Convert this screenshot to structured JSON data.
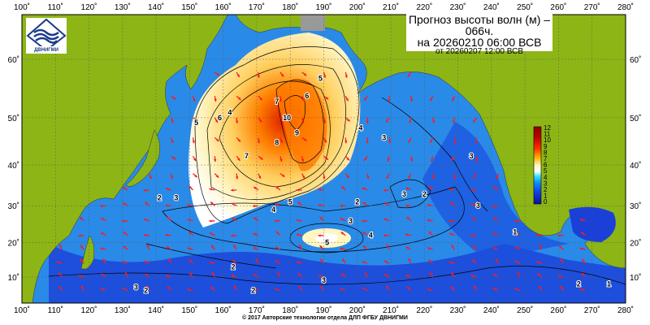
{
  "title": {
    "line1": "Прогноз высоты волн (м) –",
    "line2": "066ч.",
    "line3": "на 20260210 06:00 ВСВ",
    "line4": "от 20260207 12:00 ВСВ"
  },
  "logo": {
    "text": "ДВНИГМИ"
  },
  "footer": "© 2017 Авторские технологии отдела ДЛП ФГБУ ДВНИГМИ",
  "axes": {
    "lon_ticks": [
      "100˚",
      "110˚",
      "120˚",
      "130˚",
      "140˚",
      "150˚",
      "160˚",
      "170˚",
      "180˚",
      "190˚",
      "200˚",
      "210˚",
      "220˚",
      "230˚",
      "240˚",
      "250˚",
      "260˚",
      "270˚",
      "280˚"
    ],
    "lat_ticks": [
      "60˚",
      "50˚",
      "40˚",
      "30˚",
      "20˚",
      "10˚"
    ]
  },
  "colorbar": {
    "labels": [
      "12",
      "11",
      "10",
      "9",
      "8",
      "7",
      "6",
      "5",
      "4",
      "3",
      "2",
      "1",
      "0"
    ],
    "colors": [
      "#8b0000",
      "#c00000",
      "#e00000",
      "#ff3000",
      "#ff7a00",
      "#ffb000",
      "#ffe070",
      "#fff6c0",
      "#ffffff",
      "#40e0ff",
      "#1090ff",
      "#1040e0",
      "#1010a0"
    ]
  },
  "contour_labels": [
    {
      "text": "10",
      "lon": 179,
      "lat": 50
    },
    {
      "text": "9",
      "lon": 182,
      "lat": 47
    },
    {
      "text": "8",
      "lon": 176,
      "lat": 45
    },
    {
      "text": "7",
      "lon": 167,
      "lat": 42
    },
    {
      "text": "7",
      "lon": 176,
      "lat": 53
    },
    {
      "text": "6",
      "lon": 159,
      "lat": 50
    },
    {
      "text": "6",
      "lon": 185,
      "lat": 54
    },
    {
      "text": "5",
      "lon": 152,
      "lat": 49
    },
    {
      "text": "5",
      "lon": 189,
      "lat": 57
    },
    {
      "text": "5",
      "lon": 180,
      "lat": 31
    },
    {
      "text": "5",
      "lon": 191,
      "lat": 20
    },
    {
      "text": "4",
      "lon": 162,
      "lat": 51
    },
    {
      "text": "4",
      "lon": 175,
      "lat": 29
    },
    {
      "text": "4",
      "lon": 201,
      "lat": 48
    },
    {
      "text": "4",
      "lon": 204,
      "lat": 22
    },
    {
      "text": "3",
      "lon": 146,
      "lat": 32
    },
    {
      "text": "3",
      "lon": 208,
      "lat": 46
    },
    {
      "text": "3",
      "lon": 214,
      "lat": 33
    },
    {
      "text": "3",
      "lon": 198,
      "lat": 26
    },
    {
      "text": "3",
      "lon": 234,
      "lat": 42
    },
    {
      "text": "3",
      "lon": 236,
      "lat": 30
    },
    {
      "text": "3",
      "lon": 190,
      "lat": 9
    },
    {
      "text": "3",
      "lon": 134,
      "lat": 7
    },
    {
      "text": "2",
      "lon": 141,
      "lat": 32
    },
    {
      "text": "2",
      "lon": 200,
      "lat": 31
    },
    {
      "text": "2",
      "lon": 220,
      "lat": 33
    },
    {
      "text": "2",
      "lon": 163,
      "lat": 13
    },
    {
      "text": "2",
      "lon": 169,
      "lat": 6
    },
    {
      "text": "2",
      "lon": 137,
      "lat": 6
    },
    {
      "text": "2",
      "lon": 266,
      "lat": 8
    },
    {
      "text": "1",
      "lon": 247,
      "lat": 23
    },
    {
      "text": "1",
      "lon": 275,
      "lat": 8
    }
  ],
  "colors": {
    "land": "#8db516",
    "ocean_low": "#1a40d8",
    "ocean_mid": "#2a8ae8",
    "frame": "#000000"
  }
}
